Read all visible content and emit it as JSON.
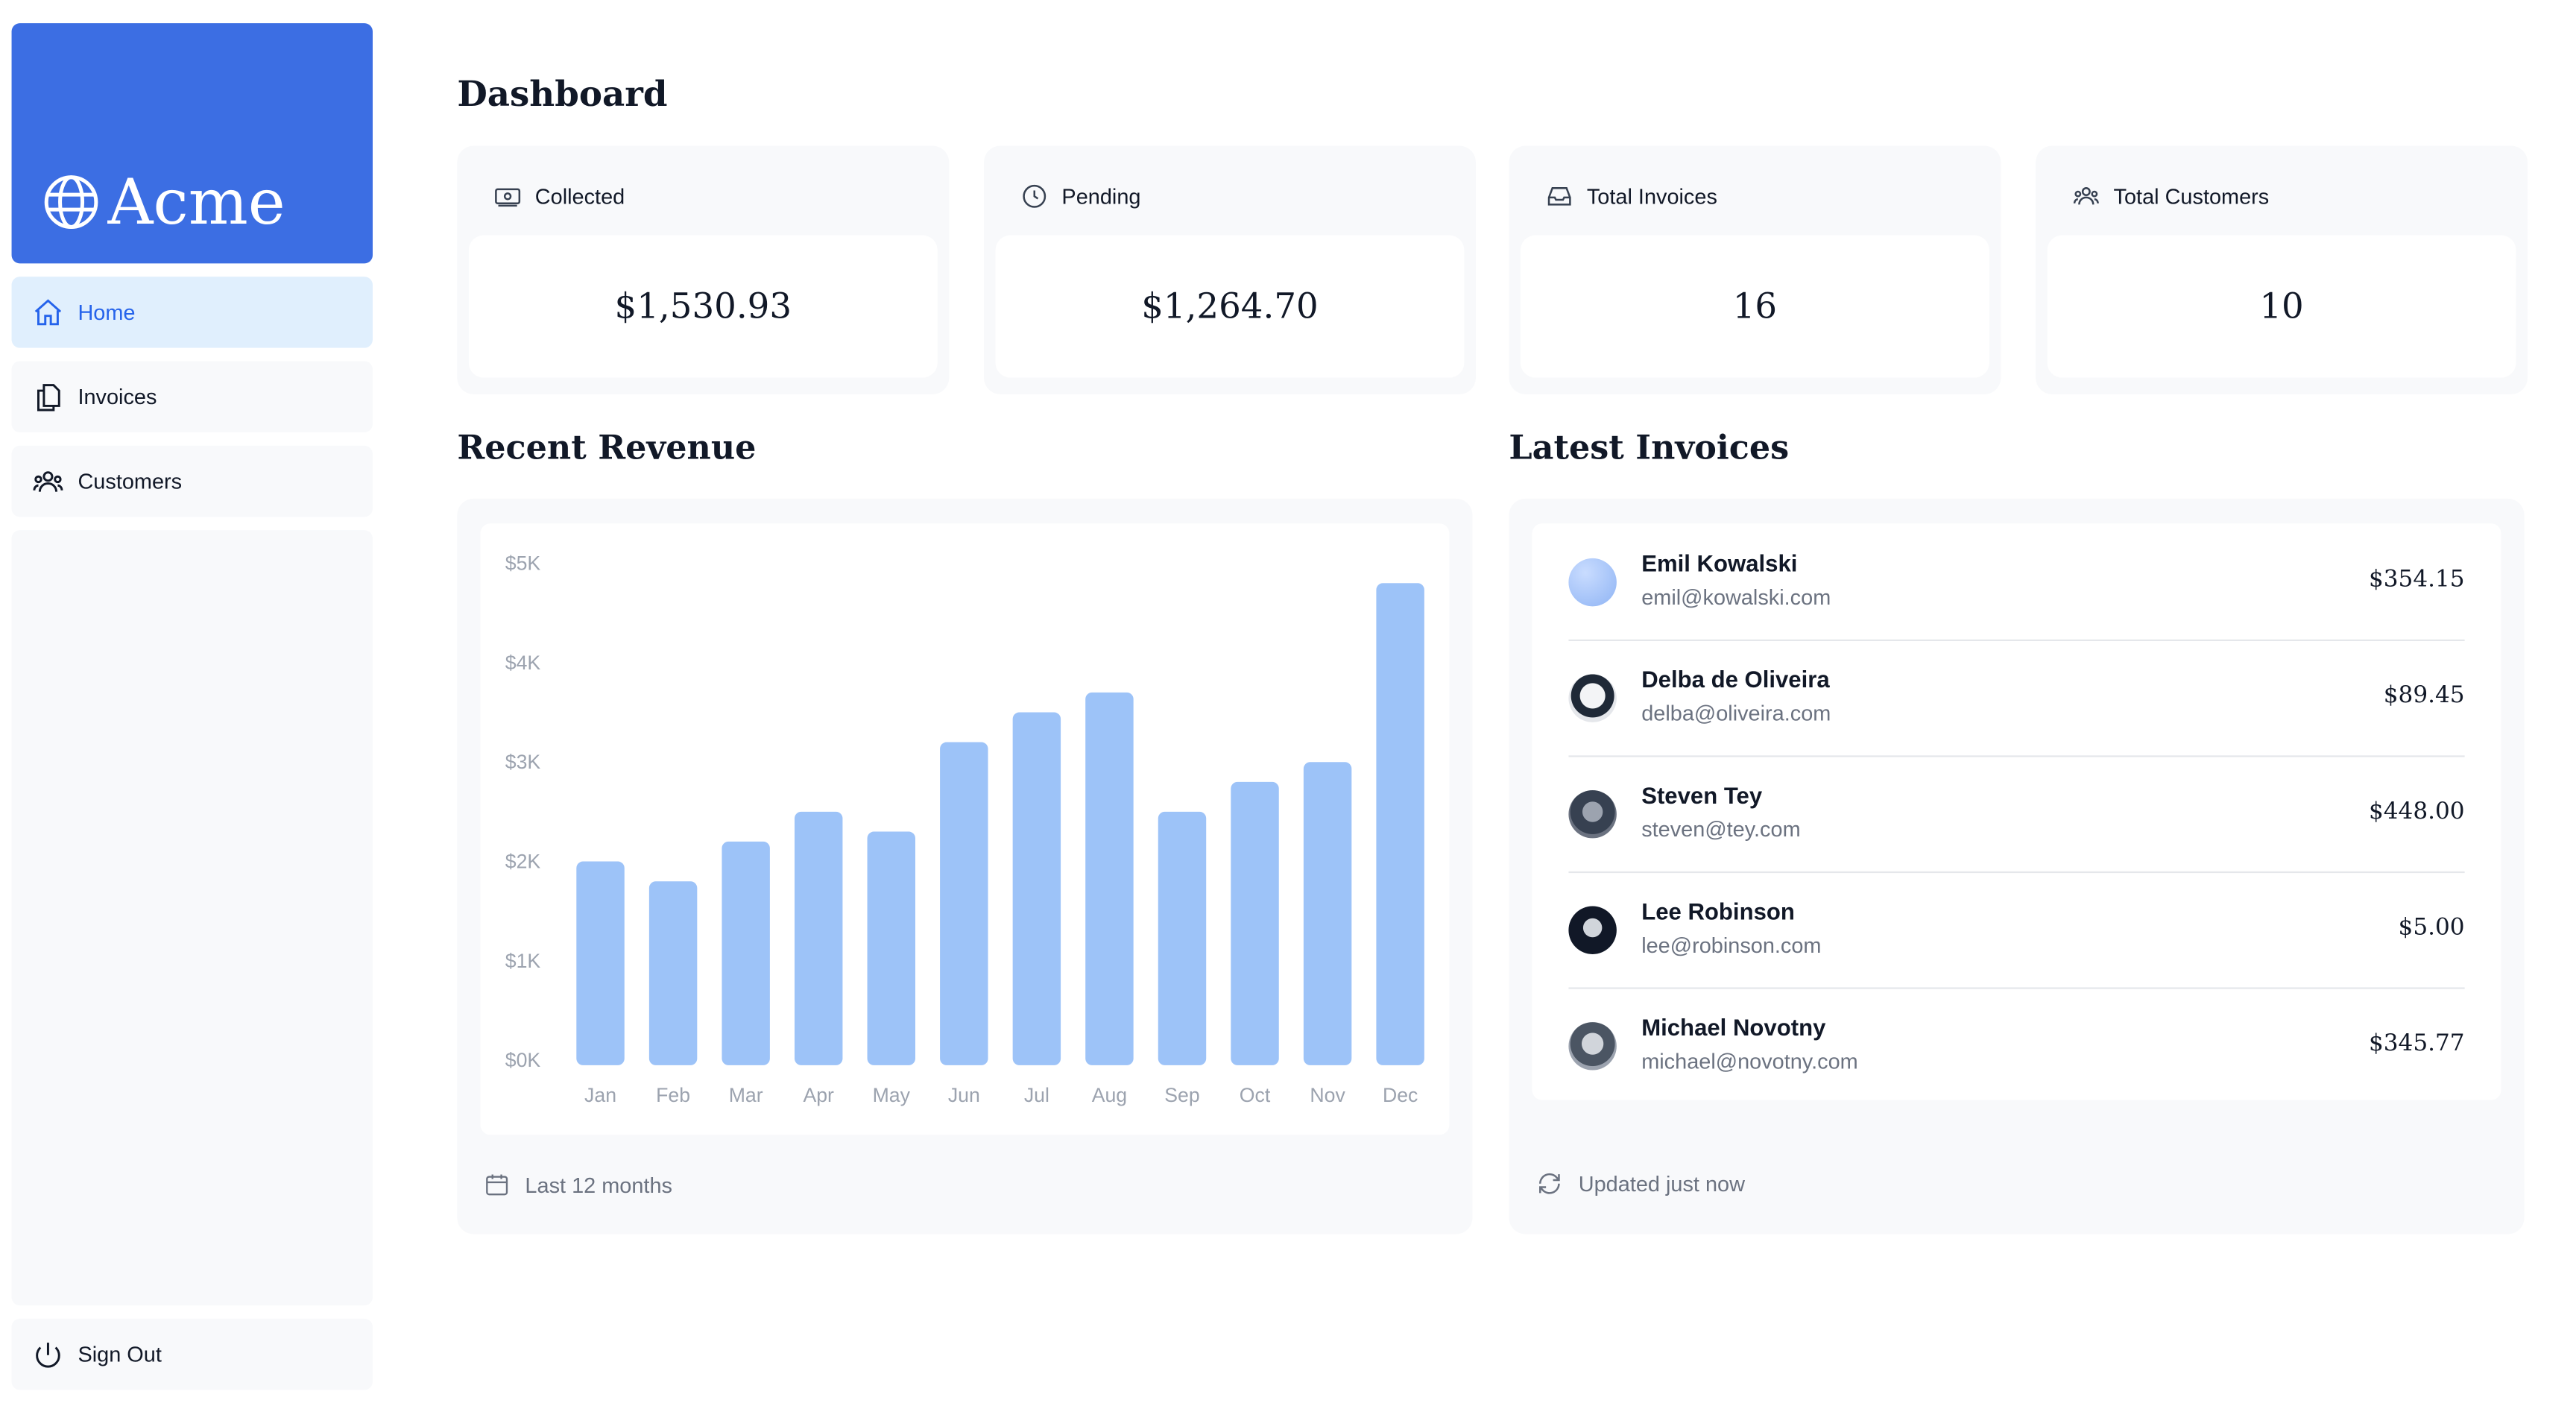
{
  "brand": {
    "name": "Acme",
    "color": "#3c6ee3",
    "icon": "globe-icon"
  },
  "nav": {
    "items": [
      {
        "label": "Home",
        "icon": "home-icon",
        "active": true
      },
      {
        "label": "Invoices",
        "icon": "document-icon",
        "active": false
      },
      {
        "label": "Customers",
        "icon": "users-icon",
        "active": false
      }
    ],
    "sign_out": {
      "label": "Sign Out",
      "icon": "power-icon"
    }
  },
  "page": {
    "title": "Dashboard"
  },
  "cards": [
    {
      "label": "Collected",
      "value": "$1,530.93",
      "icon": "banknotes-icon"
    },
    {
      "label": "Pending",
      "value": "$1,264.70",
      "icon": "clock-icon"
    },
    {
      "label": "Total Invoices",
      "value": "16",
      "icon": "inbox-icon"
    },
    {
      "label": "Total Customers",
      "value": "10",
      "icon": "users-icon"
    }
  ],
  "revenue": {
    "title": "Recent Revenue",
    "footer": "Last 12 months",
    "footer_icon": "calendar-icon"
  },
  "chart_data": {
    "type": "bar",
    "categories": [
      "Jan",
      "Feb",
      "Mar",
      "Apr",
      "May",
      "Jun",
      "Jul",
      "Aug",
      "Sep",
      "Oct",
      "Nov",
      "Dec"
    ],
    "values": [
      2000,
      1800,
      2200,
      2500,
      2300,
      3200,
      3500,
      3700,
      2500,
      2800,
      3000,
      4800
    ],
    "yticks": [
      "$0K",
      "$1K",
      "$2K",
      "$3K",
      "$4K",
      "$5K"
    ],
    "ylim": [
      0,
      5000
    ],
    "bar_color": "#9dc3f8"
  },
  "latest": {
    "title": "Latest Invoices",
    "footer": "Updated just now",
    "footer_icon": "refresh-icon",
    "invoices": [
      {
        "name": "Emil Kowalski",
        "email": "emil@kowalski.com",
        "amount": "$354.15"
      },
      {
        "name": "Delba de Oliveira",
        "email": "delba@oliveira.com",
        "amount": "$89.45"
      },
      {
        "name": "Steven Tey",
        "email": "steven@tey.com",
        "amount": "$448.00"
      },
      {
        "name": "Lee Robinson",
        "email": "lee@robinson.com",
        "amount": "$5.00"
      },
      {
        "name": "Michael Novotny",
        "email": "michael@novotny.com",
        "amount": "$345.77"
      }
    ]
  }
}
